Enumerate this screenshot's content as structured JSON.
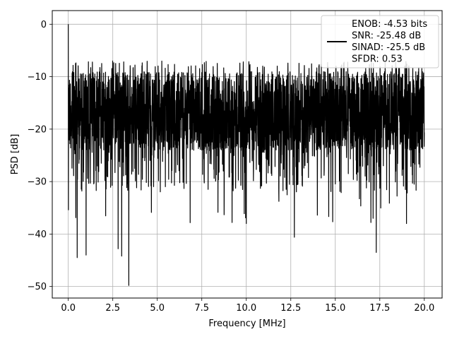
{
  "chart_data": {
    "type": "line",
    "xlabel": "Frequency [MHz]",
    "ylabel": "PSD [dB]",
    "xlim": [
      -0.9,
      21.0
    ],
    "ylim": [
      -52.2,
      2.6
    ],
    "xticks": [
      0.0,
      2.5,
      5.0,
      7.5,
      10.0,
      12.5,
      15.0,
      17.5,
      20.0
    ],
    "xtick_labels": [
      "0.0",
      "2.5",
      "5.0",
      "7.5",
      "10.0",
      "12.5",
      "15.0",
      "17.5",
      "20.0"
    ],
    "yticks": [
      0,
      -10,
      -20,
      -30,
      -40,
      -50
    ],
    "ytick_labels": [
      "0",
      "−10",
      "−20",
      "−30",
      "−40",
      "−50"
    ],
    "grid": true,
    "legend": {
      "placement": "top-right",
      "lines": [
        "ENOB: -4.53 bits",
        "SNR: -25.48 dB",
        "SINAD: -25.5 dB",
        "SFDR: 0.53"
      ]
    },
    "series": [
      {
        "color": "#000000",
        "x_range": [
          0.0,
          20.0
        ],
        "band_top": -9,
        "band_bottom": -24,
        "notable_points": [
          {
            "x": 0.0,
            "y": 0.0
          },
          {
            "x": 0.5,
            "y": -44.5
          },
          {
            "x": 1.0,
            "y": -44.0
          },
          {
            "x": 2.8,
            "y": -42.8
          },
          {
            "x": 3.0,
            "y": -44.2
          },
          {
            "x": 3.4,
            "y": -49.8
          },
          {
            "x": 9.2,
            "y": -37.8
          },
          {
            "x": 10.0,
            "y": -38.0
          },
          {
            "x": 12.7,
            "y": -40.6
          },
          {
            "x": 17.0,
            "y": -37.8
          },
          {
            "x": 17.3,
            "y": -43.5
          },
          {
            "x": 19.0,
            "y": -38.0
          }
        ]
      }
    ]
  }
}
